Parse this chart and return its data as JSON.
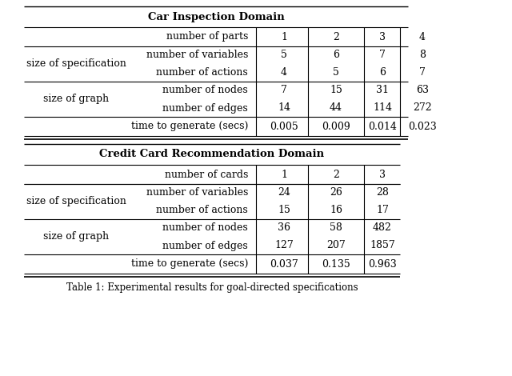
{
  "car_title": "Car Inspection Domain",
  "car_header_label": "number of parts",
  "car_header_values": [
    "1",
    "2",
    "3",
    "4"
  ],
  "car_rows": [
    {
      "group": "size of specification",
      "label": "number of variables",
      "values": [
        "5",
        "6",
        "7",
        "8"
      ]
    },
    {
      "group": "",
      "label": "number of actions",
      "values": [
        "4",
        "5",
        "6",
        "7"
      ]
    },
    {
      "group": "size of graph",
      "label": "number of nodes",
      "values": [
        "7",
        "15",
        "31",
        "63"
      ]
    },
    {
      "group": "",
      "label": "number of edges",
      "values": [
        "14",
        "44",
        "114",
        "272"
      ]
    },
    {
      "group": "",
      "label": "time to generate (secs)",
      "values": [
        "0.005",
        "0.009",
        "0.014",
        "0.023"
      ]
    }
  ],
  "cc_title": "Credit Card Recommendation Domain",
  "cc_header_label": "number of cards",
  "cc_header_values": [
    "1",
    "2",
    "3"
  ],
  "cc_rows": [
    {
      "group": "size of specification",
      "label": "number of variables",
      "values": [
        "24",
        "26",
        "28"
      ]
    },
    {
      "group": "",
      "label": "number of actions",
      "values": [
        "15",
        "16",
        "17"
      ]
    },
    {
      "group": "size of graph",
      "label": "number of nodes",
      "values": [
        "36",
        "58",
        "482"
      ]
    },
    {
      "group": "",
      "label": "number of edges",
      "values": [
        "127",
        "207",
        "1857"
      ]
    },
    {
      "group": "",
      "label": "time to generate (secs)",
      "values": [
        "0.037",
        "0.135",
        "0.963"
      ]
    }
  ],
  "caption": "Table 1: Experimental results for goal-directed specifications",
  "bg_color": "#ffffff",
  "font_size": 9.0,
  "title_font_size": 9.5
}
